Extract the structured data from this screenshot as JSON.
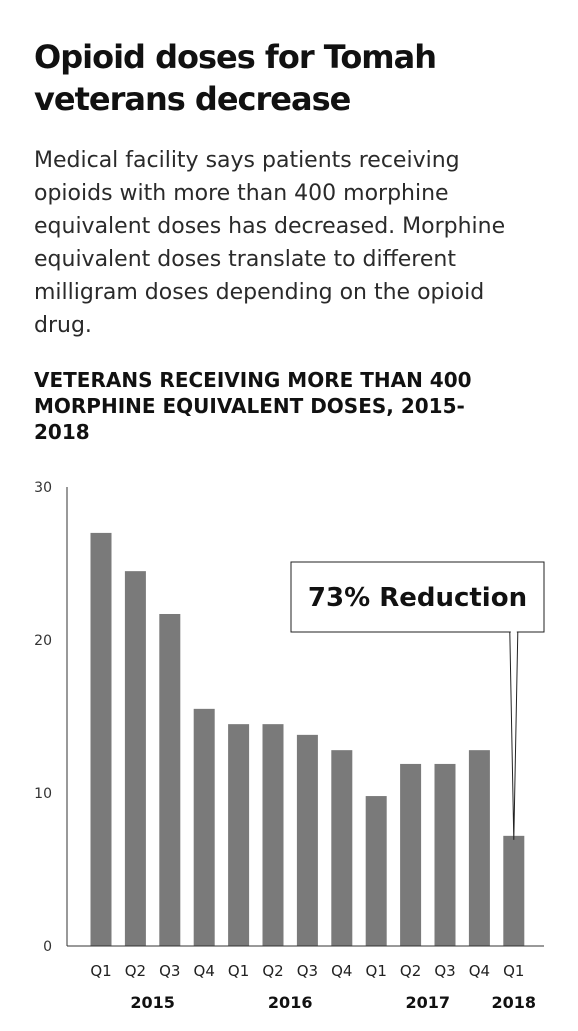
{
  "headline": "Opioid doses for Tomah veterans decrease",
  "dek": "Medical facility says patients receiving opioids with more than 400 morphine equivalent doses has decreased. Morphine equivalent doses translate to different milligram doses depending on the opioid drug.",
  "chart_data": {
    "type": "bar",
    "title": "VETERANS RECEIVING MORE THAN 400 MORPHINE EQUIVALENT DOSES, 2015-2018",
    "xlabel": "",
    "ylabel": "",
    "ylim": [
      0,
      30
    ],
    "yticks": [
      0,
      10,
      20,
      30
    ],
    "grid": false,
    "categories": [
      "Q1",
      "Q2",
      "Q3",
      "Q4",
      "Q1",
      "Q2",
      "Q3",
      "Q4",
      "Q1",
      "Q2",
      "Q3",
      "Q4",
      "Q1"
    ],
    "values": [
      27,
      24.5,
      21.7,
      15.5,
      14.5,
      14.5,
      13.8,
      12.8,
      9.8,
      11.9,
      11.9,
      12.8,
      7.2
    ],
    "years": [
      {
        "label": "2015",
        "from": 0,
        "to": 3
      },
      {
        "label": "2016",
        "from": 4,
        "to": 7
      },
      {
        "label": "2017",
        "from": 8,
        "to": 11
      },
      {
        "label": "2018",
        "from": 12,
        "to": 12
      }
    ],
    "annotation": {
      "text": "73% Reduction",
      "target_index": 12
    },
    "bar_color": "#7a7a7a"
  }
}
